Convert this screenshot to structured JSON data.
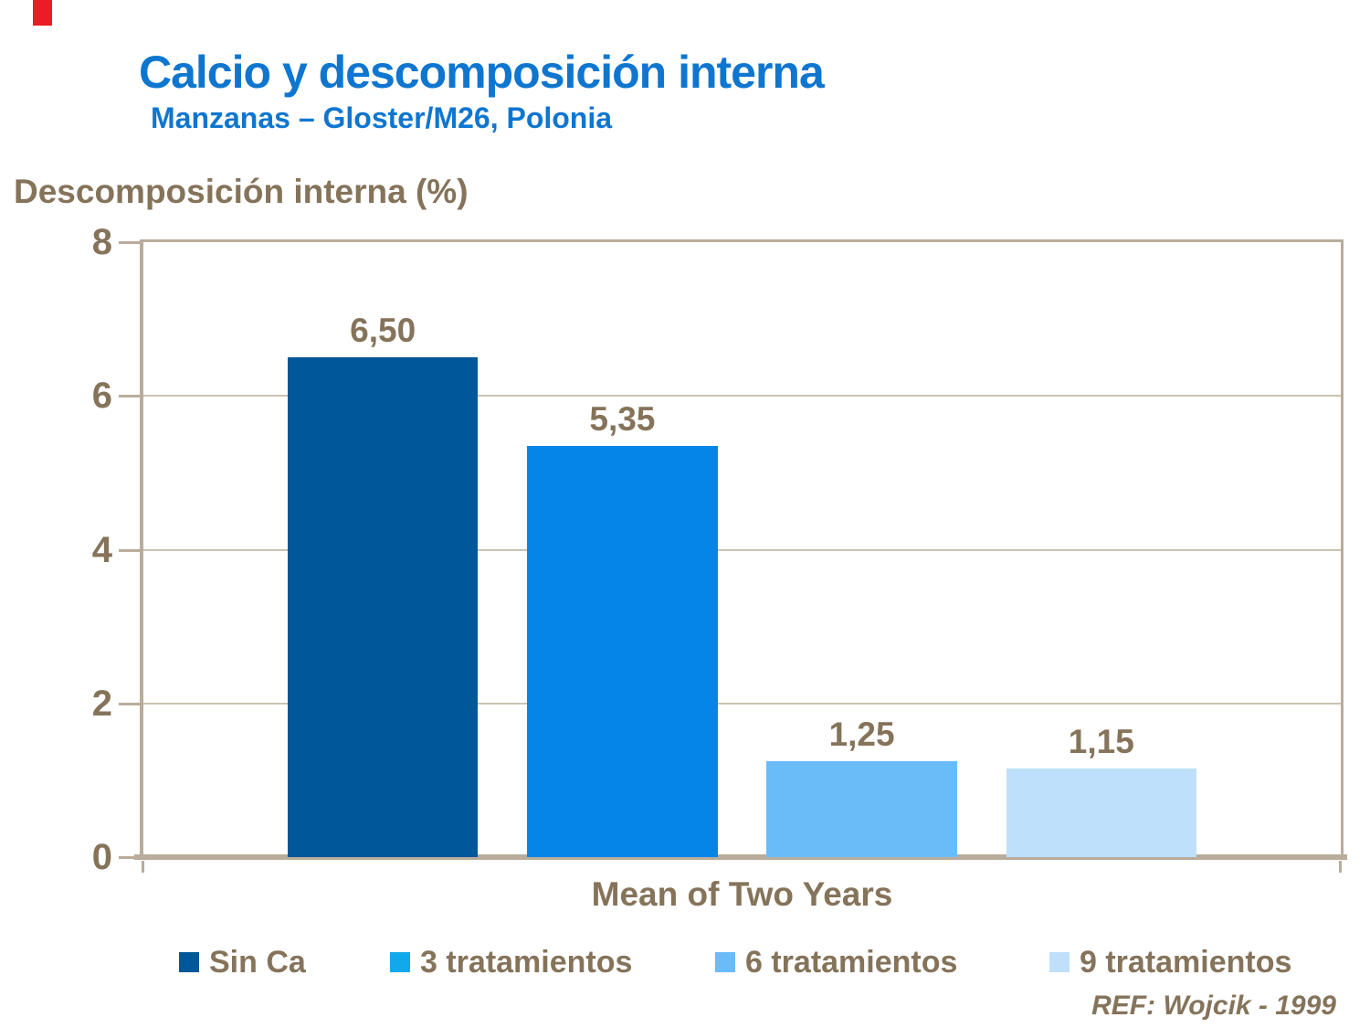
{
  "slide": {
    "title": "Calcio y descomposición interna",
    "subtitle": "Manzanas – Gloster/M26, Polonia",
    "reference": "REF: Wojcik - 1999",
    "colors": {
      "title_blue": "#0F76D0",
      "text_taupe": "#85735A",
      "frame_tan": "#B9AC9B",
      "gridline": "#CCC1B1",
      "accent_marker_red": "#EC1C24"
    }
  },
  "chart_data": {
    "type": "bar",
    "title": "Calcio y descomposición interna",
    "subtitle": "Manzanas – Gloster/M26, Polonia",
    "categories": [
      "Mean of Two Years"
    ],
    "series": [
      {
        "name": "Sin Ca",
        "values": [
          6.5
        ],
        "label": "6,50",
        "color": "#00589B"
      },
      {
        "name": "3 tratamientos",
        "values": [
          5.35
        ],
        "label": "5,35",
        "color": "#0685E8",
        "marker_color": "#12A9EC"
      },
      {
        "name": "6 tratamientos",
        "values": [
          1.25
        ],
        "label": "1,25",
        "color": "#6ABCF9"
      },
      {
        "name": "9 tratamientos",
        "values": [
          1.15
        ],
        "label": "1,15",
        "color": "#BFE0FA"
      }
    ],
    "xlabel": "Mean of Two Years",
    "ylabel": "Descomposición interna (%)",
    "ylim": [
      0,
      8
    ],
    "yticks": [
      0,
      2,
      4,
      6,
      8
    ],
    "grid": true,
    "legend_position": "bottom"
  }
}
